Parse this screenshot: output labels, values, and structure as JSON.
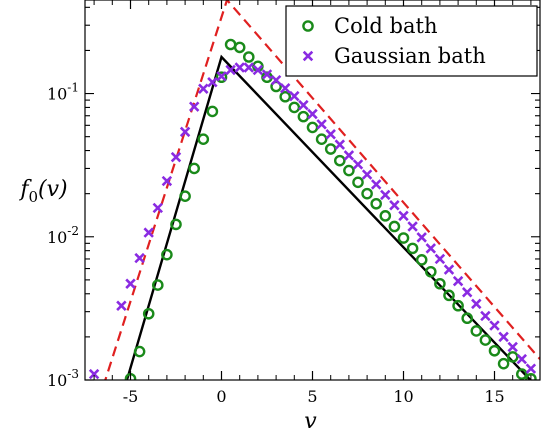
{
  "chart_data": {
    "type": "scatter",
    "xlabel": "v",
    "ylabel": "f_0(v)",
    "xlim": [
      -7.5,
      17.5
    ],
    "ylim": [
      0.001,
      0.45
    ],
    "yscale": "log",
    "x_ticks": [
      -5,
      0,
      5,
      10,
      15
    ],
    "y_ticks": [
      {
        "value": 0.001,
        "base": "10",
        "exp": "-3"
      },
      {
        "value": 0.01,
        "base": "10",
        "exp": "-2"
      },
      {
        "value": 0.1,
        "base": "10",
        "exp": "-1"
      }
    ],
    "legend_position": "top-right",
    "series": [
      {
        "name": "Cold bath",
        "marker": "circle",
        "color": "#1a8a1a",
        "points": [
          [
            -5.0,
            0.00102
          ],
          [
            -4.5,
            0.00158
          ],
          [
            -4.0,
            0.0029
          ],
          [
            -3.5,
            0.0046
          ],
          [
            -3.0,
            0.0075
          ],
          [
            -2.5,
            0.0122
          ],
          [
            -2.0,
            0.0192
          ],
          [
            -1.5,
            0.03
          ],
          [
            -1.0,
            0.048
          ],
          [
            -0.5,
            0.075
          ],
          [
            0.0,
            0.13
          ],
          [
            0.5,
            0.22
          ],
          [
            1.0,
            0.21
          ],
          [
            1.5,
            0.18
          ],
          [
            2.0,
            0.155
          ],
          [
            2.5,
            0.13
          ],
          [
            3.0,
            0.112
          ],
          [
            3.5,
            0.095
          ],
          [
            4.0,
            0.08
          ],
          [
            4.5,
            0.069
          ],
          [
            5.0,
            0.058
          ],
          [
            5.5,
            0.048
          ],
          [
            6.0,
            0.041
          ],
          [
            6.5,
            0.034
          ],
          [
            7.0,
            0.029
          ],
          [
            7.5,
            0.024
          ],
          [
            8.0,
            0.02
          ],
          [
            8.5,
            0.017
          ],
          [
            9.0,
            0.014
          ],
          [
            9.5,
            0.0118
          ],
          [
            10.0,
            0.0098
          ],
          [
            10.5,
            0.0083
          ],
          [
            11.0,
            0.0069
          ],
          [
            11.5,
            0.0057
          ],
          [
            12.0,
            0.0047
          ],
          [
            12.5,
            0.0039
          ],
          [
            13.0,
            0.0033
          ],
          [
            13.5,
            0.0027
          ],
          [
            14.0,
            0.0022
          ],
          [
            14.5,
            0.0019
          ],
          [
            15.0,
            0.0016
          ],
          [
            15.5,
            0.0013
          ],
          [
            16.0,
            0.00145
          ],
          [
            16.5,
            0.0011
          ],
          [
            17.0,
            0.00102
          ]
        ]
      },
      {
        "name": "Gaussian bath",
        "marker": "cross",
        "color": "#8a2be2",
        "points": [
          [
            -7.0,
            0.0011
          ],
          [
            -5.5,
            0.0033
          ],
          [
            -5.0,
            0.0047
          ],
          [
            -4.5,
            0.0071
          ],
          [
            -4.0,
            0.0107
          ],
          [
            -3.5,
            0.0159
          ],
          [
            -3.0,
            0.0245
          ],
          [
            -2.5,
            0.036
          ],
          [
            -2.0,
            0.054
          ],
          [
            -1.5,
            0.081
          ],
          [
            -1.0,
            0.108
          ],
          [
            -0.5,
            0.12
          ],
          [
            0.0,
            0.132
          ],
          [
            0.5,
            0.146
          ],
          [
            1.0,
            0.152
          ],
          [
            1.5,
            0.152
          ],
          [
            2.0,
            0.146
          ],
          [
            2.5,
            0.136
          ],
          [
            3.0,
            0.124
          ],
          [
            3.5,
            0.109
          ],
          [
            4.0,
            0.096
          ],
          [
            4.5,
            0.083
          ],
          [
            5.0,
            0.072
          ],
          [
            5.5,
            0.061
          ],
          [
            6.0,
            0.052
          ],
          [
            6.5,
            0.044
          ],
          [
            7.0,
            0.037
          ],
          [
            7.5,
            0.032
          ],
          [
            8.0,
            0.0272
          ],
          [
            8.5,
            0.0232
          ],
          [
            9.0,
            0.0196
          ],
          [
            9.5,
            0.0166
          ],
          [
            10.0,
            0.014
          ],
          [
            10.5,
            0.0118
          ],
          [
            11.0,
            0.0099
          ],
          [
            11.5,
            0.0083
          ],
          [
            12.0,
            0.007
          ],
          [
            12.5,
            0.0059
          ],
          [
            13.0,
            0.0049
          ],
          [
            13.5,
            0.0041
          ],
          [
            14.0,
            0.0034
          ],
          [
            14.5,
            0.0028
          ],
          [
            15.0,
            0.0024
          ],
          [
            15.5,
            0.002
          ],
          [
            16.0,
            0.0017
          ],
          [
            16.5,
            0.0014
          ],
          [
            17.0,
            0.0012
          ]
        ]
      }
    ],
    "curves": [
      {
        "style": "solid",
        "color": "#000000",
        "points": [
          [
            -5.3,
            0.0009
          ],
          [
            0.0,
            0.18
          ],
          [
            17.5,
            0.00085
          ]
        ]
      },
      {
        "style": "dashed",
        "color": "#e02020",
        "points": [
          [
            -6.5,
            0.0009
          ],
          [
            0.3,
            0.45
          ],
          [
            17.5,
            0.0014
          ]
        ]
      }
    ]
  }
}
